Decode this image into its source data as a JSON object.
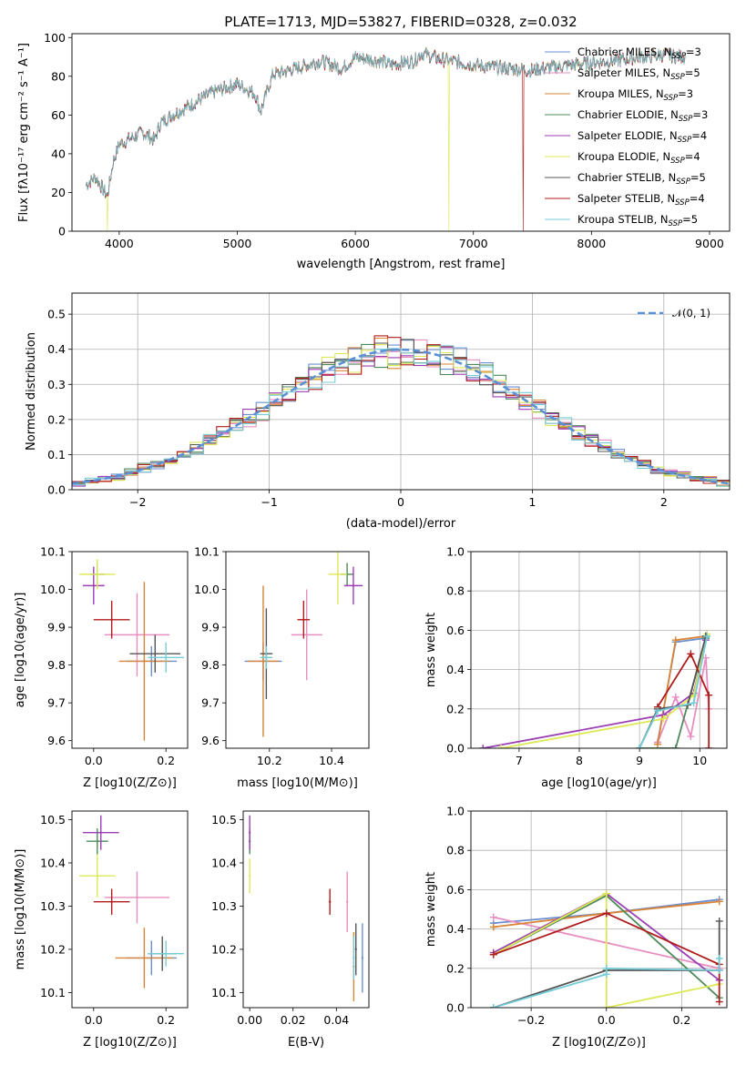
{
  "title": "PLATE=1713, MJD=53827, FIBERID=0328, z=0.032",
  "models": [
    {
      "name": "Chabrier MILES",
      "nssp": "3",
      "color": "#6a8fd0"
    },
    {
      "name": "Salpeter MILES",
      "nssp": "5",
      "color": "#e88ec0"
    },
    {
      "name": "Kroupa MILES",
      "nssp": "3",
      "color": "#d98436"
    },
    {
      "name": "Chabrier ELODIE",
      "nssp": "3",
      "color": "#4f8a5a"
    },
    {
      "name": "Salpeter ELODIE",
      "nssp": "4",
      "color": "#9b3fb5"
    },
    {
      "name": "Kroupa ELODIE",
      "nssp": "4",
      "color": "#dde857"
    },
    {
      "name": "Chabrier STELIB",
      "nssp": "5",
      "color": "#555555"
    },
    {
      "name": "Salpeter STELIB",
      "nssp": "4",
      "color": "#b01c1c"
    },
    {
      "name": "Kroupa STELIB",
      "nssp": "5",
      "color": "#74ccd8"
    }
  ],
  "chart_data": [
    {
      "id": "spectrum",
      "type": "line",
      "title": "PLATE=1713, MJD=53827, FIBERID=0328, z=0.032",
      "xlabel": "wavelength [Angstrom, rest frame]",
      "ylabel": "Flux [fλ10⁻¹⁷ erg cm⁻² s⁻¹ A⁻¹]",
      "xlim": [
        3600,
        9170
      ],
      "ylim": [
        0,
        102
      ],
      "xticks": [
        "4000",
        "5000",
        "6000",
        "7000",
        "8000",
        "9000"
      ],
      "yticks": [
        "0",
        "20",
        "40",
        "60",
        "80",
        "100"
      ],
      "continuum": [
        [
          3720,
          24
        ],
        [
          3800,
          28
        ],
        [
          3900,
          18
        ],
        [
          3950,
          36
        ],
        [
          4000,
          45
        ],
        [
          4100,
          48
        ],
        [
          4200,
          51
        ],
        [
          4300,
          47
        ],
        [
          4350,
          56
        ],
        [
          4450,
          60
        ],
        [
          4600,
          65
        ],
        [
          4800,
          72
        ],
        [
          5000,
          76
        ],
        [
          5150,
          71
        ],
        [
          5200,
          62
        ],
        [
          5300,
          81
        ],
        [
          5500,
          84
        ],
        [
          5700,
          88
        ],
        [
          5890,
          84
        ],
        [
          6000,
          90
        ],
        [
          6200,
          88
        ],
        [
          6300,
          86
        ],
        [
          6500,
          88
        ],
        [
          6560,
          92
        ],
        [
          6700,
          89
        ],
        [
          6900,
          87
        ],
        [
          7100,
          85
        ],
        [
          7300,
          84
        ],
        [
          7500,
          83
        ],
        [
          7700,
          85
        ],
        [
          8000,
          87
        ],
        [
          8200,
          88
        ],
        [
          8400,
          90
        ],
        [
          8600,
          91
        ],
        [
          8800,
          90
        ]
      ],
      "drops": [
        {
          "x": 3900,
          "series": "Kroupa ELODIE"
        },
        {
          "x": 6790,
          "series": "Kroupa ELODIE"
        },
        {
          "x": 7420,
          "series": "Salpeter STELIB"
        }
      ],
      "legend": "top-right"
    },
    {
      "id": "residuals",
      "type": "step",
      "xlabel": "(data-model)/error",
      "ylabel": "Normed distribution",
      "xlim": [
        -2.5,
        2.5
      ],
      "ylim": [
        0,
        0.56
      ],
      "xticks": [
        "−2",
        "−1",
        "0",
        "1",
        "2"
      ],
      "yticks": [
        "0.0",
        "0.1",
        "0.2",
        "0.3",
        "0.4",
        "0.5"
      ],
      "bin_width": 0.1,
      "legend_label": "𝒩(0, 1)",
      "legend": "top-right",
      "grid": true
    },
    {
      "id": "age-vs-Z",
      "type": "errorbar",
      "xlabel": "Z [log10(Z/Z⊙)]",
      "ylabel": "age  [log10(age/yr)]",
      "xlim": [
        -0.06,
        0.26
      ],
      "ylim": [
        9.58,
        10.1
      ],
      "xticks": [
        "0.0",
        "0.2"
      ],
      "yticks": [
        "9.6",
        "9.7",
        "9.8",
        "9.9",
        "10.0",
        "10.1"
      ],
      "points": [
        {
          "series": "Chabrier MILES",
          "x": 0.16,
          "y": 9.81,
          "xerr": 0.07,
          "yerr": 0.04
        },
        {
          "series": "Salpeter MILES",
          "x": 0.12,
          "y": 9.88,
          "xerr": 0.09,
          "yerr": 0.11
        },
        {
          "series": "Kroupa MILES",
          "x": 0.14,
          "y": 9.81,
          "xerr": 0.07,
          "yerr": 0.21
        },
        {
          "series": "Chabrier ELODIE",
          "x": 0.01,
          "y": 10.04,
          "xerr": 0.02,
          "yerr": 0.03
        },
        {
          "series": "Salpeter ELODIE",
          "x": 0.0,
          "y": 10.01,
          "xerr": 0.03,
          "yerr": 0.05
        },
        {
          "series": "Kroupa ELODIE",
          "x": 0.01,
          "y": 10.04,
          "xerr": 0.05,
          "yerr": 0.04
        },
        {
          "series": "Chabrier STELIB",
          "x": 0.17,
          "y": 9.83,
          "xerr": 0.07,
          "yerr": 0.05
        },
        {
          "series": "Salpeter STELIB",
          "x": 0.05,
          "y": 9.92,
          "xerr": 0.05,
          "yerr": 0.05
        },
        {
          "series": "Kroupa STELIB",
          "x": 0.2,
          "y": 9.82,
          "xerr": 0.05,
          "yerr": 0.04
        }
      ]
    },
    {
      "id": "age-vs-mass",
      "type": "errorbar",
      "xlabel": "mass [log10(M/M⊙)]",
      "ylabel": "",
      "xlim": [
        10.06,
        10.52
      ],
      "ylim": [
        9.58,
        10.1
      ],
      "xticks": [
        "10.2",
        "10.4"
      ],
      "yticks": [
        "9.6",
        "9.7",
        "9.8",
        "9.9",
        "10.0",
        "10.1"
      ],
      "points": [
        {
          "series": "Chabrier MILES",
          "x": 10.18,
          "y": 9.81,
          "xerr": 0.06,
          "yerr": 0.05
        },
        {
          "series": "Salpeter MILES",
          "x": 10.32,
          "y": 9.88,
          "xerr": 0.05,
          "yerr": 0.12
        },
        {
          "series": "Kroupa MILES",
          "x": 10.18,
          "y": 9.81,
          "xerr": 0.05,
          "yerr": 0.2
        },
        {
          "series": "Chabrier ELODIE",
          "x": 10.45,
          "y": 10.04,
          "xerr": 0.02,
          "yerr": 0.03
        },
        {
          "series": "Salpeter ELODIE",
          "x": 10.47,
          "y": 10.01,
          "xerr": 0.03,
          "yerr": 0.05
        },
        {
          "series": "Kroupa ELODIE",
          "x": 10.42,
          "y": 10.04,
          "xerr": 0.03,
          "yerr": 0.08
        },
        {
          "series": "Chabrier STELIB",
          "x": 10.19,
          "y": 9.83,
          "xerr": 0.02,
          "yerr": 0.12
        },
        {
          "series": "Salpeter STELIB",
          "x": 10.31,
          "y": 9.92,
          "xerr": 0.02,
          "yerr": 0.05
        },
        {
          "series": "Kroupa STELIB",
          "x": 10.19,
          "y": 9.82,
          "xerr": 0.02,
          "yerr": 0.03
        }
      ]
    },
    {
      "id": "weight-vs-age",
      "type": "line",
      "xlabel": "age  [log10(age/yr)]",
      "ylabel": "mass weight",
      "xlim": [
        6.2,
        10.45
      ],
      "ylim": [
        0,
        1
      ],
      "xticks": [
        "7",
        "8",
        "9",
        "10"
      ],
      "yticks": [
        "0.0",
        "0.2",
        "0.4",
        "0.6",
        "0.8",
        "1.0"
      ],
      "grid": true,
      "series": [
        {
          "name": "Chabrier MILES",
          "points": [
            [
              9.3,
              0.03
            ],
            [
              9.6,
              0.54
            ],
            [
              10.1,
              0.56
            ]
          ]
        },
        {
          "name": "Salpeter MILES",
          "points": [
            [
              9.3,
              0.03
            ],
            [
              9.6,
              0.26
            ],
            [
              9.85,
              0.06
            ],
            [
              10.1,
              0.46
            ],
            [
              10.15,
              0.2
            ]
          ]
        },
        {
          "name": "Kroupa MILES",
          "points": [
            [
              9.3,
              0.02
            ],
            [
              9.6,
              0.55
            ],
            [
              10.1,
              0.57
            ]
          ]
        },
        {
          "name": "Chabrier ELODIE",
          "points": [
            [
              9.0,
              0.0
            ],
            [
              9.6,
              0.0
            ],
            [
              10.1,
              0.56
            ]
          ]
        },
        {
          "name": "Salpeter ELODIE",
          "points": [
            [
              6.4,
              0.0
            ],
            [
              9.4,
              0.17
            ],
            [
              9.9,
              0.28
            ],
            [
              10.1,
              0.55
            ]
          ]
        },
        {
          "name": "Kroupa ELODIE",
          "points": [
            [
              6.7,
              0.0
            ],
            [
              9.4,
              0.15
            ],
            [
              9.9,
              0.27
            ],
            [
              10.12,
              0.58
            ]
          ]
        },
        {
          "name": "Chabrier STELIB",
          "points": [
            [
              9.0,
              0.0
            ],
            [
              9.3,
              0.2
            ],
            [
              9.8,
              0.22
            ],
            [
              10.1,
              0.57
            ]
          ]
        },
        {
          "name": "Salpeter STELIB",
          "points": [
            [
              9.3,
              0.21
            ],
            [
              9.85,
              0.48
            ],
            [
              10.15,
              0.27
            ],
            [
              10.15,
              0.0
            ]
          ]
        },
        {
          "name": "Kroupa STELIB",
          "points": [
            [
              9.0,
              0.0
            ],
            [
              9.3,
              0.19
            ],
            [
              9.9,
              0.23
            ],
            [
              10.12,
              0.57
            ]
          ]
        }
      ]
    },
    {
      "id": "mass-vs-Z",
      "type": "errorbar",
      "xlabel": "Z [log10(Z/Z⊙)]",
      "ylabel": "mass [log10(M/M⊙)]",
      "xlim": [
        -0.06,
        0.26
      ],
      "ylim": [
        10.065,
        10.52
      ],
      "xticks": [
        "0.0",
        "0.2"
      ],
      "yticks": [
        "10.1",
        "10.2",
        "10.3",
        "10.4",
        "10.5"
      ],
      "points": [
        {
          "series": "Chabrier MILES",
          "x": 0.16,
          "y": 10.18,
          "xerr": 0.07,
          "yerr": 0.04
        },
        {
          "series": "Salpeter MILES",
          "x": 0.12,
          "y": 10.32,
          "xerr": 0.09,
          "yerr": 0.06
        },
        {
          "series": "Kroupa MILES",
          "x": 0.14,
          "y": 10.18,
          "xerr": 0.08,
          "yerr": 0.07
        },
        {
          "series": "Chabrier ELODIE",
          "x": 0.01,
          "y": 10.45,
          "xerr": 0.03,
          "yerr": 0.03
        },
        {
          "series": "Salpeter ELODIE",
          "x": 0.02,
          "y": 10.47,
          "xerr": 0.05,
          "yerr": 0.04
        },
        {
          "series": "Kroupa ELODIE",
          "x": 0.01,
          "y": 10.37,
          "xerr": 0.05,
          "yerr": 0.05
        },
        {
          "series": "Chabrier STELIB",
          "x": 0.19,
          "y": 10.19,
          "xerr": 0.04,
          "yerr": 0.04
        },
        {
          "series": "Salpeter STELIB",
          "x": 0.05,
          "y": 10.31,
          "xerr": 0.05,
          "yerr": 0.03
        },
        {
          "series": "Kroupa STELIB",
          "x": 0.2,
          "y": 10.19,
          "xerr": 0.05,
          "yerr": 0.03
        }
      ]
    },
    {
      "id": "mass-vs-EBV",
      "type": "errorbar",
      "xlabel": "E(B-V)",
      "ylabel": "",
      "xlim": [
        -0.003,
        0.055
      ],
      "ylim": [
        10.065,
        10.52
      ],
      "xticks": [
        "0.00",
        "0.02",
        "0.04"
      ],
      "yticks": [
        "10.1",
        "10.2",
        "10.3",
        "10.4",
        "10.5"
      ],
      "points": [
        {
          "series": "Chabrier MILES",
          "x": 0.052,
          "y": 10.18,
          "yerr": 0.08
        },
        {
          "series": "Salpeter MILES",
          "x": 0.045,
          "y": 10.31,
          "yerr": 0.07
        },
        {
          "series": "Kroupa MILES",
          "x": 0.048,
          "y": 10.16,
          "yerr": 0.08
        },
        {
          "series": "Chabrier ELODIE",
          "x": 0.0,
          "y": 10.45,
          "yerr": 0.03
        },
        {
          "series": "Salpeter ELODIE",
          "x": 0.0,
          "y": 10.47,
          "yerr": 0.04
        },
        {
          "series": "Kroupa ELODIE",
          "x": 0.0,
          "y": 10.37,
          "yerr": 0.04
        },
        {
          "series": "Chabrier STELIB",
          "x": 0.049,
          "y": 10.2,
          "yerr": 0.06
        },
        {
          "series": "Salpeter STELIB",
          "x": 0.037,
          "y": 10.31,
          "yerr": 0.03
        },
        {
          "series": "Kroupa STELIB",
          "x": 0.048,
          "y": 10.18,
          "yerr": 0.05
        }
      ]
    },
    {
      "id": "weight-vs-Z",
      "type": "line",
      "xlabel": "Z [log10(Z/Z⊙)]",
      "ylabel": "mass weight",
      "xlim": [
        -0.36,
        0.32
      ],
      "ylim": [
        0,
        1
      ],
      "xticks": [
        "−0.2",
        "0.0",
        "0.2"
      ],
      "yticks": [
        "0.0",
        "0.2",
        "0.4",
        "0.6",
        "0.8",
        "1.0"
      ],
      "grid": true,
      "series": [
        {
          "name": "Chabrier MILES",
          "points": [
            [
              -0.3,
              0.43
            ],
            [
              0.0,
              0.48
            ],
            [
              0.3,
              0.55
            ]
          ]
        },
        {
          "name": "Salpeter MILES",
          "points": [
            [
              -0.3,
              0.46
            ],
            [
              0.0,
              0.33
            ],
            [
              0.3,
              0.2
            ]
          ]
        },
        {
          "name": "Kroupa MILES",
          "points": [
            [
              -0.3,
              0.41
            ],
            [
              0.0,
              0.48
            ],
            [
              0.3,
              0.54
            ]
          ]
        },
        {
          "name": "Chabrier ELODIE",
          "points": [
            [
              -0.3,
              0.27
            ],
            [
              0.0,
              0.57
            ],
            [
              0.3,
              0.05
            ]
          ]
        },
        {
          "name": "Salpeter ELODIE",
          "points": [
            [
              -0.3,
              0.28
            ],
            [
              0.0,
              0.58
            ],
            [
              0.3,
              0.14
            ]
          ]
        },
        {
          "name": "Kroupa ELODIE",
          "points": [
            [
              -0.3,
              0.27
            ],
            [
              0.0,
              0.58
            ],
            [
              0.0,
              0.0
            ],
            [
              0.3,
              0.12
            ]
          ]
        },
        {
          "name": "Chabrier STELIB",
          "points": [
            [
              -0.3,
              0.0
            ],
            [
              0.0,
              0.19
            ],
            [
              0.3,
              0.19
            ],
            [
              0.3,
              0.44
            ]
          ]
        },
        {
          "name": "Salpeter STELIB",
          "points": [
            [
              -0.3,
              0.27
            ],
            [
              0.0,
              0.48
            ],
            [
              0.3,
              0.22
            ],
            [
              0.3,
              0.03
            ]
          ]
        },
        {
          "name": "Kroupa STELIB",
          "points": [
            [
              -0.3,
              0.0
            ],
            [
              0.0,
              0.17
            ],
            [
              0.0,
              0.2
            ],
            [
              0.3,
              0.19
            ],
            [
              0.3,
              0.25
            ]
          ]
        }
      ]
    }
  ]
}
